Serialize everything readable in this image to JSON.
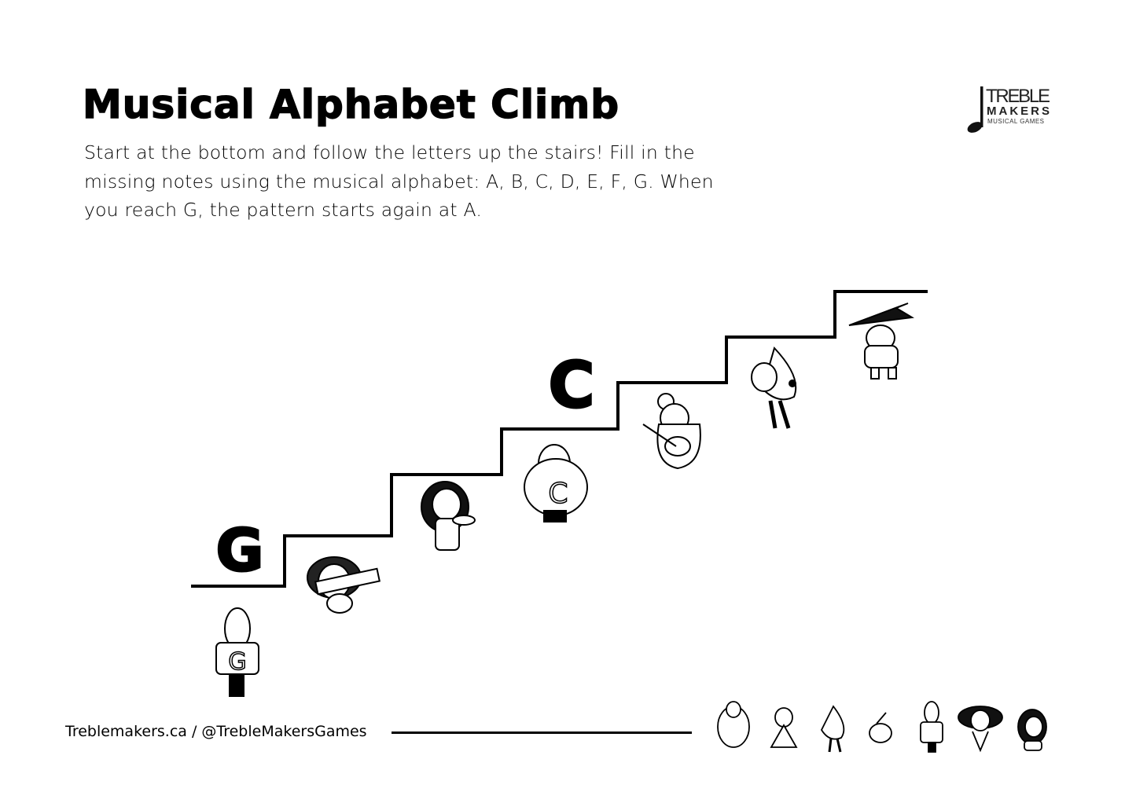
{
  "title": "Musical Alphabet Climb",
  "instructions": "Start at the bottom and follow the letters up the stairs! Fill in the missing notes using the musical alphabet: A, B, C, D, E, F, G. When you reach G, the pattern starts again at A.",
  "logo": {
    "line1": "TREBLE",
    "line2": "MAKERS",
    "line3": "MUSICAL GAMES"
  },
  "steps": [
    {
      "letter": "G",
      "character_badge": "G"
    },
    {
      "letter": ""
    },
    {
      "letter": ""
    },
    {
      "letter": "C",
      "character_badge": "C"
    },
    {
      "letter": ""
    },
    {
      "letter": ""
    },
    {
      "letter": ""
    }
  ],
  "footer": {
    "text": "Treblemakers.ca / @TrebleMakersGames"
  }
}
